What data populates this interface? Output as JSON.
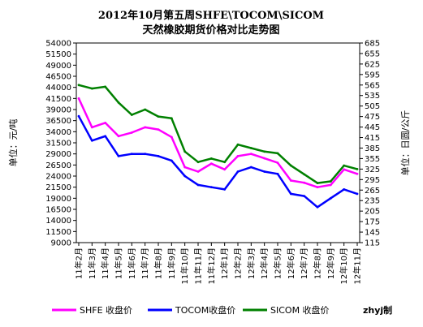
{
  "chart_data": {
    "type": "line",
    "title": "2012年10月第五周SHFE\\TOCOM\\SICOM",
    "subtitle": "天然橡胶期货价格对比走势图",
    "ylabel_left": "单位：元/吨",
    "ylabel_right": "单位：日圆/公斤",
    "ylim_left": [
      9000,
      54000
    ],
    "ylim_right": [
      115,
      685
    ],
    "yticks_left": [
      "9000",
      "11500",
      "14000",
      "16500",
      "19000",
      "21500",
      "24000",
      "26500",
      "29000",
      "31500",
      "34000",
      "36500",
      "39000",
      "41500",
      "44000",
      "46500",
      "49000",
      "51500",
      "54000"
    ],
    "yticks_right": [
      "115",
      "145",
      "175",
      "205",
      "235",
      "265",
      "295",
      "325",
      "355",
      "385",
      "415",
      "445",
      "475",
      "505",
      "535",
      "565",
      "595",
      "625",
      "655",
      "685"
    ],
    "categories": [
      "11年2月",
      "11年3月",
      "11年4月",
      "11年5月",
      "11年6月",
      "11年7月",
      "11年8月",
      "11年9月",
      "11年10月",
      "11年11月",
      "11年12月",
      "12年1月",
      "12年2月",
      "12年3月",
      "12年4月",
      "12年5月",
      "12年6月",
      "12年7月",
      "12年8月",
      "12年9月",
      "12年10月",
      "12年11月"
    ],
    "grid": false,
    "legend_position": "bottom",
    "series": [
      {
        "name": "SHFE 收盘价",
        "color": "#ff00ff",
        "axis": "left",
        "values": [
          41500,
          35000,
          36000,
          33000,
          33800,
          35000,
          34500,
          32800,
          26000,
          25000,
          26800,
          25500,
          28500,
          29000,
          28000,
          27000,
          23000,
          22500,
          21500,
          22000,
          25500,
          24500
        ]
      },
      {
        "name": "TOCOM收盘价",
        "color": "#0000ff",
        "axis": "left",
        "values": [
          37500,
          32000,
          33000,
          28500,
          29000,
          29000,
          28500,
          27500,
          24000,
          22000,
          21500,
          21000,
          25000,
          26000,
          25000,
          24500,
          20000,
          19500,
          17000,
          19000,
          21000,
          20000
        ]
      },
      {
        "name": "SICOM 收盘价",
        "color": "#008000",
        "axis": "right",
        "values": [
          565,
          555,
          560,
          515,
          480,
          495,
          475,
          470,
          375,
          345,
          355,
          345,
          395,
          385,
          375,
          370,
          335,
          310,
          285,
          290,
          335,
          325
        ]
      }
    ]
  },
  "source_label": "zhyj制"
}
